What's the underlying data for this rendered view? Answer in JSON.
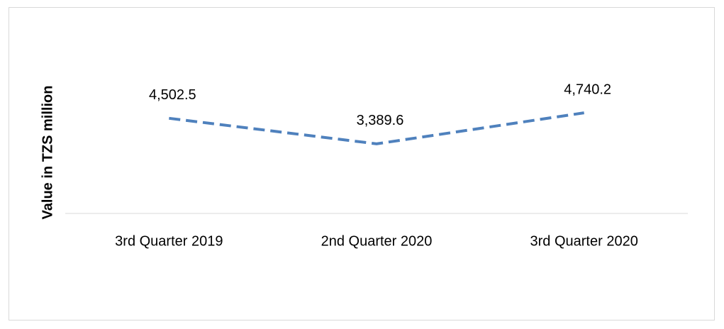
{
  "chart_data": {
    "type": "line",
    "y_label": "Value in TZS million",
    "categories": [
      "3rd Quarter 2019",
      "2nd Quarter 2020",
      "3rd Quarter 2020"
    ],
    "values": [
      4502.5,
      3389.6,
      4740.2
    ],
    "value_labels": [
      "4,502.5",
      "3,389.6",
      "4,740.2"
    ],
    "color": "#4f81bd",
    "ylim": [
      360,
      7800
    ]
  }
}
